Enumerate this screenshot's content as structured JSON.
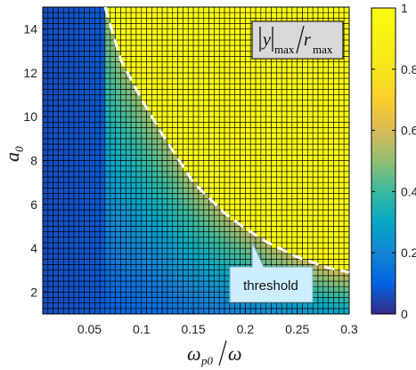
{
  "chart_data": {
    "type": "heatmap",
    "title": "",
    "xlabel": {
      "main": "ω",
      "sub": "p0",
      "denominator": "ω"
    },
    "ylabel": {
      "main": "a",
      "sub": "0"
    },
    "x_ticks": [
      "0.05",
      "0.1",
      "0.15",
      "0.2",
      "0.25",
      "0.3"
    ],
    "x_tick_values": [
      0.05,
      0.1,
      0.15,
      0.2,
      0.25,
      0.3
    ],
    "y_ticks": [
      "2",
      "4",
      "6",
      "8",
      "10",
      "12",
      "14"
    ],
    "y_tick_values": [
      2,
      4,
      6,
      8,
      10,
      12,
      14
    ],
    "xlim": [
      0.005,
      0.3
    ],
    "ylim": [
      1,
      15
    ],
    "grid": {
      "nx": 59,
      "ny": 56
    },
    "colorbar": {
      "ticks": [
        "0",
        "0.2",
        "0.4",
        "0.6",
        "0.8",
        "1"
      ],
      "tick_values": [
        0,
        0.2,
        0.4,
        0.6,
        0.8,
        1
      ],
      "colormap": "parula",
      "range": [
        0,
        1
      ]
    },
    "legend": {
      "bar_y": "y",
      "bar_sub1": "max",
      "bar_r": "r",
      "bar_sub2": "max"
    },
    "threshold_curve": {
      "x": [
        0.065,
        0.08,
        0.1,
        0.12,
        0.15,
        0.18,
        0.2,
        0.22,
        0.25,
        0.28,
        0.3
      ],
      "y": [
        15,
        12.6,
        10.8,
        9.2,
        7.0,
        5.6,
        4.9,
        4.3,
        3.6,
        3.1,
        2.9
      ]
    },
    "annotation": {
      "text": "threshold",
      "fill": "#cdeeff"
    },
    "above_value": 1.0,
    "colors": {
      "above": "#f8fa0d",
      "dashed": "#ffffff",
      "cell_border": "#000000"
    }
  }
}
